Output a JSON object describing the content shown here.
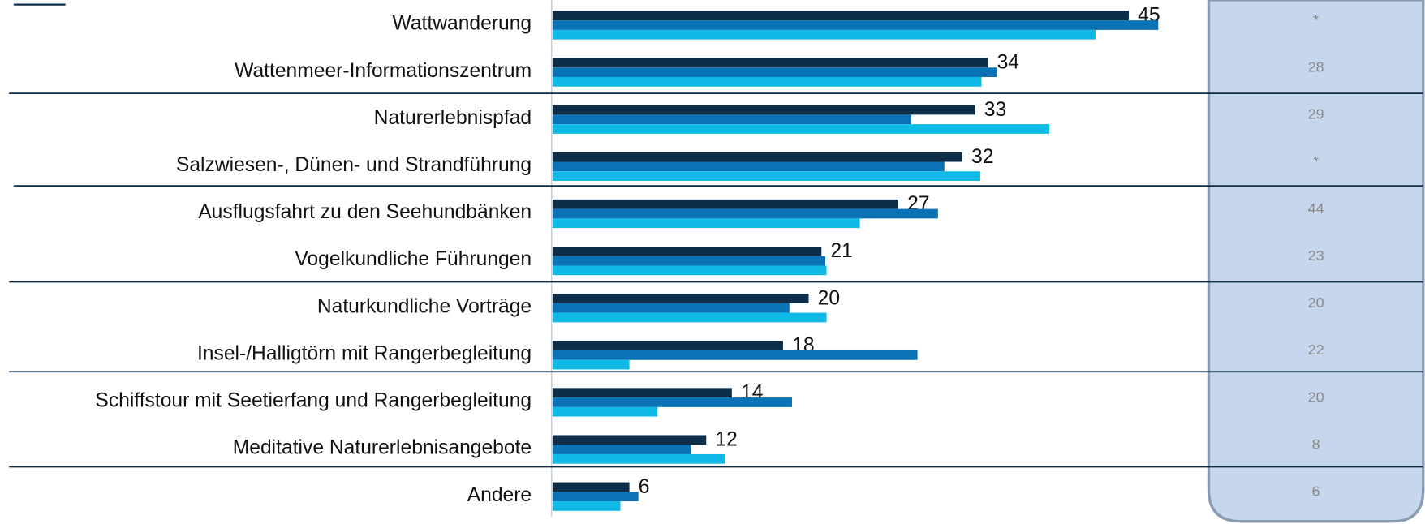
{
  "chart_data": {
    "type": "bar",
    "orientation": "horizontal",
    "categories": [
      "Wattwanderung",
      "Wattenmeer-Informationszentrum",
      "Naturerlebnispfad",
      "Salzwiesen-, Dünen- und Strandführung",
      "Ausflugsfahrt zu den Seehundbänken",
      "Vogelkundliche Führungen",
      "Naturkundliche Vorträge",
      "Insel-/Halligtörn mit Rangerbegleitung",
      "Schiffstour mit Seetierfang und Rangerbegleitung",
      "Meditative Naturerlebnisangebote",
      "Andere"
    ],
    "series": [
      {
        "color": "#0d2d48",
        "values": [
          45,
          34,
          33,
          32,
          27,
          21,
          20,
          18,
          14,
          12,
          6
        ],
        "labels": true
      },
      {
        "color": "#0a72b5",
        "values": [
          47.3,
          34.7,
          28,
          30.6,
          30.1,
          21.3,
          18.5,
          28.5,
          18.7,
          10.8,
          6.7
        ]
      },
      {
        "color": "#10b9e6",
        "values": [
          42.4,
          33.5,
          38.8,
          33.4,
          24,
          21.4,
          21.4,
          6,
          8.2,
          13.5,
          5.3
        ]
      }
    ],
    "xlim": [
      0,
      50
    ]
  },
  "side_column": {
    "values": [
      "*",
      28,
      29,
      "*",
      44,
      23,
      20,
      22,
      20,
      8,
      6
    ]
  }
}
